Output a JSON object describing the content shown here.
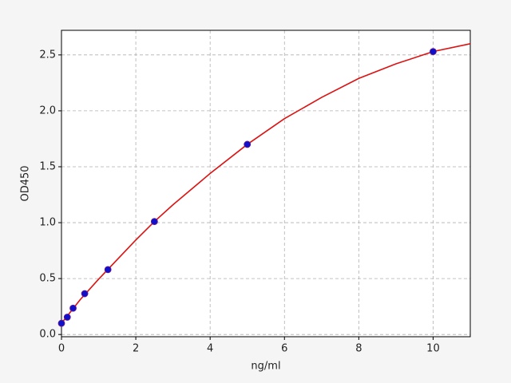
{
  "chart_data": {
    "type": "scatter",
    "xlabel": "ng/ml",
    "ylabel": "OD450",
    "xlim": [
      0,
      11
    ],
    "ylim": [
      -0.02,
      2.72
    ],
    "xticks": [
      0,
      2,
      4,
      6,
      8,
      10
    ],
    "yticks": [
      {
        "value": 0,
        "label": "0.0"
      },
      0.5,
      {
        "value": 1,
        "label": "1.0"
      },
      1.5,
      {
        "value": 2,
        "label": "2.0"
      },
      2.5
    ],
    "grid": true,
    "series": [
      {
        "style": "line",
        "color": "#dd1111",
        "x": [
          0,
          0.5,
          1,
          1.5,
          2,
          2.5,
          3,
          4,
          5,
          6,
          7,
          8,
          9,
          10,
          11
        ],
        "values": [
          0.1,
          0.31,
          0.495,
          0.67,
          0.845,
          1.01,
          1.16,
          1.44,
          1.7,
          1.93,
          2.12,
          2.29,
          2.42,
          2.53,
          2.6
        ]
      },
      {
        "style": "points",
        "color": "#1010cc",
        "x": [
          0,
          0.156,
          0.3125,
          0.625,
          1.25,
          2.5,
          5,
          10
        ],
        "values": [
          0.1,
          0.155,
          0.235,
          0.365,
          0.58,
          1.01,
          1.7,
          2.53
        ]
      }
    ]
  }
}
